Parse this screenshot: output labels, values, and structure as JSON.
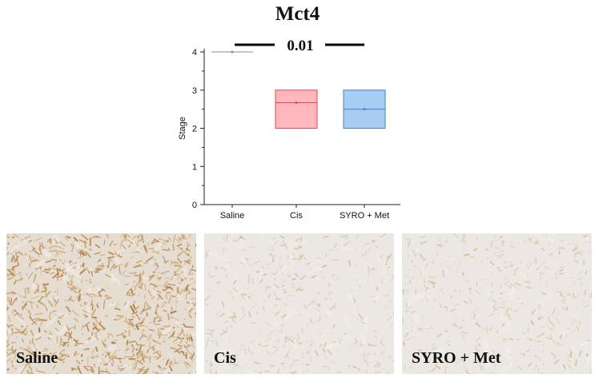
{
  "title": "Mct4",
  "chart_data": {
    "type": "box",
    "title": "Mct4",
    "ylabel": "Stage",
    "xlabel": "",
    "ylim": [
      0,
      4
    ],
    "yticks": [
      0,
      1,
      2,
      3,
      4
    ],
    "categories": [
      "Saline",
      "Cis",
      "SYRO + Met"
    ],
    "boxes": [
      {
        "category": "Saline",
        "q1": 4,
        "q3": 4,
        "median": 4,
        "mean": 4,
        "fill": "#ffffff",
        "stroke": "#888888"
      },
      {
        "category": "Cis",
        "q1": 2,
        "q3": 3,
        "median": 2.67,
        "mean": 2.67,
        "fill": "#ffb6bd",
        "stroke": "#d94b57"
      },
      {
        "category": "SYRO + Met",
        "q1": 2,
        "q3": 3,
        "median": 2.5,
        "mean": 2.5,
        "fill": "#a9cdf2",
        "stroke": "#4a80c2"
      }
    ],
    "annotation": {
      "text": "0.01",
      "from": "Saline",
      "to": "SYRO + Met"
    }
  },
  "panels": [
    {
      "label": "Saline",
      "stain": "heavy"
    },
    {
      "label": "Cis",
      "stain": "light"
    },
    {
      "label": "SYRO + Met",
      "stain": "light"
    }
  ]
}
